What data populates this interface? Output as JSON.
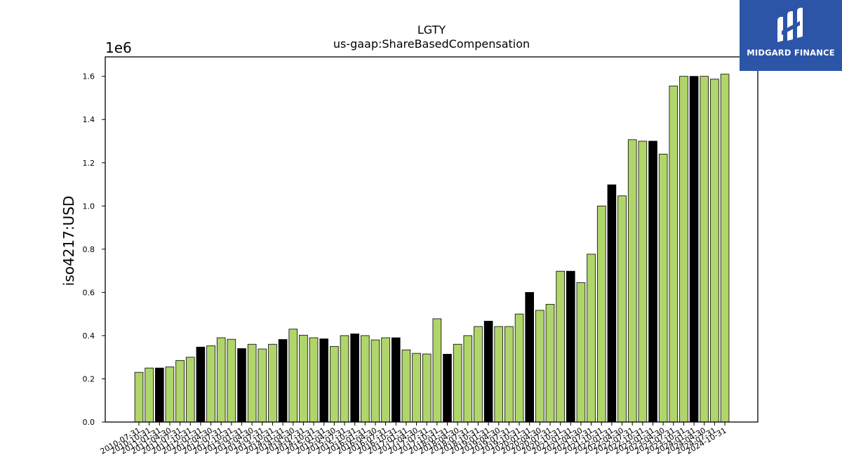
{
  "chart_data": {
    "type": "bar",
    "title": "LGTY",
    "subtitle": "us-gaap:ShareBasedCompensation",
    "ylabel": "iso4217:USD",
    "y_offset_label": "1e6",
    "ylim": [
      0,
      1690000
    ],
    "yticks": [
      0,
      200000,
      400000,
      600000,
      800000,
      1000000,
      1200000,
      1400000,
      1600000
    ],
    "ytick_labels": [
      "0.0",
      "0.2",
      "0.4",
      "0.6",
      "0.8",
      "1.0",
      "1.2",
      "1.4",
      "1.6"
    ],
    "categories": [
      "2010-07-31",
      "2010-10-31",
      "2011-01-31",
      "2011-04-30",
      "2011-07-31",
      "2011-10-31",
      "2012-01-31",
      "2012-04-30",
      "2012-07-31",
      "2012-10-31",
      "2013-01-31",
      "2013-04-30",
      "2013-07-31",
      "2013-10-31",
      "2014-01-31",
      "2014-04-30",
      "2014-07-31",
      "2014-10-31",
      "2015-01-31",
      "2015-04-30",
      "2015-07-31",
      "2015-10-31",
      "2016-01-31",
      "2016-04-30",
      "2016-07-31",
      "2016-10-31",
      "2017-01-31",
      "2017-04-30",
      "2017-07-31",
      "2017-10-31",
      "2018-01-31",
      "2018-04-30",
      "2018-07-31",
      "2018-10-31",
      "2019-01-31",
      "2019-04-30",
      "2019-07-31",
      "2019-10-31",
      "2020-01-31",
      "2020-04-30",
      "2020-07-31",
      "2020-10-31",
      "2021-01-31",
      "2021-04-30",
      "2021-07-31",
      "2021-10-31",
      "2022-01-31",
      "2022-04-30",
      "2022-07-31",
      "2022-10-31",
      "2023-01-31",
      "2023-04-30",
      "2023-07-31",
      "2023-10-31",
      "2024-01-31",
      "2024-04-30",
      "2024-07-31",
      "2024-10-31"
    ],
    "values": [
      230000,
      250000,
      250000,
      255000,
      285000,
      300000,
      347000,
      353000,
      390000,
      383000,
      340000,
      360000,
      338000,
      360000,
      382000,
      430000,
      402000,
      390000,
      385000,
      350000,
      400000,
      408000,
      400000,
      380000,
      390000,
      390000,
      334000,
      318000,
      315000,
      478000,
      314000,
      360000,
      400000,
      442000,
      467000,
      442000,
      442000,
      500000,
      600000,
      517000,
      545000,
      698000,
      698000,
      645000,
      777000,
      1000000,
      1098000,
      1047000,
      1307000,
      1300000,
      1300000,
      1240000,
      1555000,
      1600000,
      1600000,
      1600000,
      1587000,
      1610000
    ],
    "bar_colors": [
      "#b0d56b",
      "#b0d56b",
      "#000000",
      "#b0d56b",
      "#b0d56b",
      "#b0d56b",
      "#000000",
      "#b0d56b",
      "#b0d56b",
      "#b0d56b",
      "#000000",
      "#b0d56b",
      "#b0d56b",
      "#b0d56b",
      "#000000",
      "#b0d56b",
      "#b0d56b",
      "#b0d56b",
      "#000000",
      "#b0d56b",
      "#b0d56b",
      "#000000",
      "#b0d56b",
      "#b0d56b",
      "#b0d56b",
      "#000000",
      "#b0d56b",
      "#b0d56b",
      "#b0d56b",
      "#b0d56b",
      "#000000",
      "#b0d56b",
      "#b0d56b",
      "#b0d56b",
      "#000000",
      "#b0d56b",
      "#b0d56b",
      "#b0d56b",
      "#000000",
      "#b0d56b",
      "#b0d56b",
      "#b0d56b",
      "#000000",
      "#b0d56b",
      "#b0d56b",
      "#b0d56b",
      "#000000",
      "#b0d56b",
      "#b0d56b",
      "#b0d56b",
      "#000000",
      "#b0d56b",
      "#b0d56b",
      "#b0d56b",
      "#000000",
      "#b0d56b",
      "#b0d56b",
      "#b0d56b"
    ],
    "grid": false,
    "legend": "none"
  },
  "logo": {
    "text": "MIDGARD FINANCE",
    "icon": "midgard-logo-icon",
    "color": "#2c55a8"
  }
}
